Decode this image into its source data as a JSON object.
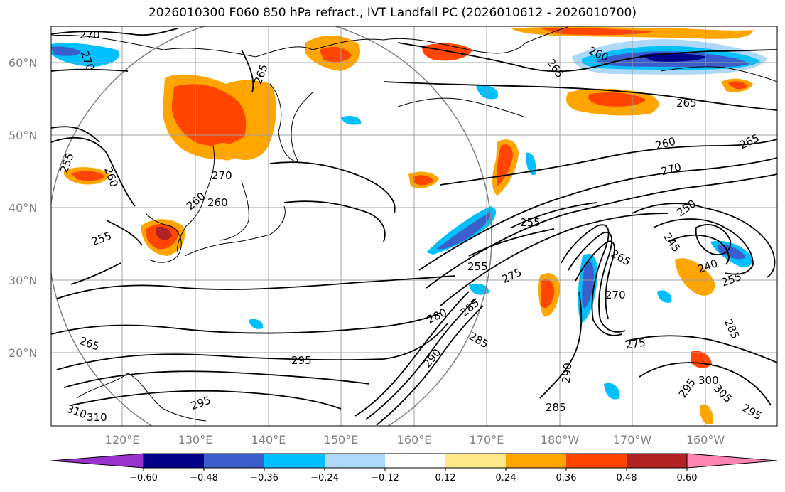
{
  "title": "2026010300 F060 850 hPa refract., IVT Landfall PC (2026010612 - 2026010700)",
  "map": {
    "lat_labels": [
      "60°N",
      "50°N",
      "40°N",
      "30°N",
      "20°N"
    ],
    "lon_labels": [
      "120°E",
      "130°E",
      "140°E",
      "150°E",
      "160°E",
      "170°E",
      "180°W",
      "170°W",
      "160°W"
    ],
    "gridline_color": "#a0a0a0",
    "coastline_color": "#000000",
    "contour_color": "#000000",
    "range_ring_color": "#808080",
    "contour_labels": [
      "270",
      "270",
      "265",
      "260",
      "265",
      "265",
      "260",
      "265",
      "255",
      "260",
      "270",
      "270",
      "260",
      "250",
      "255",
      "255",
      "255",
      "245",
      "240",
      "255",
      "265",
      "270",
      "275",
      "275",
      "280",
      "285",
      "285",
      "265",
      "295",
      "285",
      "290",
      "285",
      "295",
      "300",
      "305",
      "295",
      "310",
      "310",
      "295",
      "290",
      "260"
    ]
  },
  "colorbar": {
    "ticks": [
      "−0.60",
      "−0.48",
      "−0.36",
      "−0.24",
      "−0.12",
      "0.12",
      "0.24",
      "0.36",
      "0.48",
      "0.60"
    ],
    "colors": [
      "#9932cc",
      "#00008b",
      "#3a5fcd",
      "#00bfff",
      "#add8f6",
      "#ffffff",
      "#ffe88a",
      "#ffa500",
      "#ff4500",
      "#b22222",
      "#ff85b0"
    ]
  }
}
